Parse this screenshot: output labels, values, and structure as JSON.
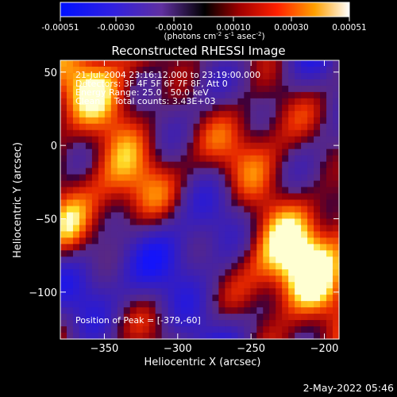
{
  "chart_data": {
    "type": "heatmap",
    "title": "Reconstructed RHESSI Image",
    "xlabel": "Heliocentric X (arcsec)",
    "ylabel": "Heliocentric Y (arcsec)",
    "xlim": [
      -380,
      -190
    ],
    "ylim": [
      -132,
      58
    ],
    "x_ticks": [
      -350,
      -300,
      -250,
      -200
    ],
    "y_ticks": [
      50,
      0,
      -50,
      -100
    ],
    "colorbar": {
      "ticks": [
        "-0.00051",
        "-0.00030",
        "-0.00010",
        "0.00010",
        "0.00030",
        "0.00051"
      ],
      "units_prefix": "(photons cm",
      "units_sup1": "-2",
      "units_mid1": " s",
      "units_sup2": "-1",
      "units_mid2": " asec",
      "units_sup3": "-2",
      "units_suffix": ")"
    },
    "annotations": [
      "21-Jul-2004 23:16:12.000 to 23:19:00.000",
      "Detectors: 3F 4F 5F 6F 7F 8F, Att 0",
      "Energy Range: 25.0 - 50.0 keV",
      "Clean     Total counts: 3.43E+03"
    ],
    "peak_text": "Position of Peak = [-379,-60]",
    "grid": false
  },
  "footer": {
    "date": "2-May-2022 05:46"
  }
}
